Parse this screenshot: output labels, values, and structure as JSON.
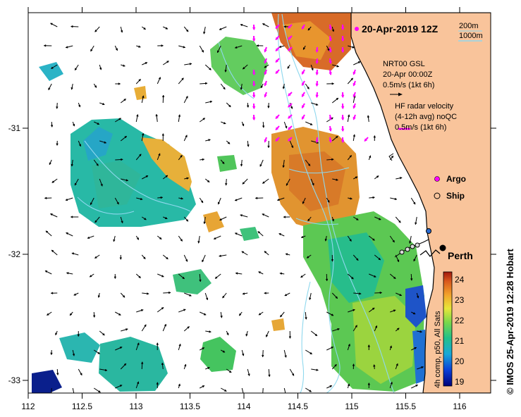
{
  "title": "20-Apr-2019 12Z",
  "depth_legend": [
    "200m",
    "1000m"
  ],
  "gsl_legend": {
    "line1": "NRT00 GSL",
    "line2": "20-Apr 00:00Z",
    "line3": "0.5m/s (1kt 6h)"
  },
  "hf_legend": {
    "line1": "HF radar velocity",
    "line2": "(4-12h avg) noQC",
    "line3": "0.5m/s (1kt 6h)"
  },
  "markers": {
    "argo": "Argo",
    "ship": "Ship"
  },
  "city": "Perth",
  "colorbar": {
    "label": "4h comp, p50, All Sats",
    "ticks": [
      "24",
      "23",
      "22",
      "21",
      "20",
      "19"
    ]
  },
  "x_ticks": [
    "112",
    "112.5",
    "113",
    "113.5",
    "114",
    "114.5",
    "115",
    "115.5",
    "116"
  ],
  "y_ticks": [
    "-31",
    "-32",
    "-33"
  ],
  "credit": "© IMOS 25-Apr-2019 12:28 Hobart",
  "colors": {
    "land": "#f9c49b",
    "hf_arrow": "#ff00ff",
    "contour": "#8fd8ee"
  }
}
